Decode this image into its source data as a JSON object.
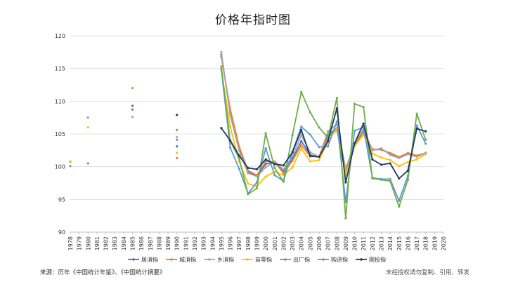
{
  "chart_data": {
    "type": "line",
    "title": "价格年指时图",
    "xlabel": "",
    "ylabel": "",
    "ylim": [
      90,
      120
    ],
    "yticks": [
      90,
      95,
      100,
      105,
      110,
      115,
      120
    ],
    "xlim": [
      1978,
      2020
    ],
    "grid": true,
    "legend_position": "bottom",
    "series": [
      {
        "name": "居消指",
        "color": "#4472C4",
        "x": [
          1978,
          1980,
          1985,
          1990,
          1995,
          1996,
          1997,
          1998,
          1999,
          2000,
          2001,
          2002,
          2003,
          2004,
          2005,
          2006,
          2007,
          2008,
          2009,
          2010,
          2011,
          2012,
          2013,
          2014,
          2015,
          2016,
          2017,
          2018
        ],
        "y": [
          100.7,
          107.5,
          109.3,
          103.1,
          117.1,
          108.3,
          102.8,
          99.2,
          98.6,
          100.4,
          100.7,
          99.2,
          101.2,
          103.9,
          101.8,
          101.5,
          104.8,
          105.9,
          99.3,
          103.3,
          105.4,
          102.6,
          102.6,
          102.0,
          101.4,
          102.0,
          101.6,
          102.1
        ]
      },
      {
        "name": "城消指",
        "color": "#ED7D31",
        "x": [
          1978,
          1980,
          1985,
          1990,
          1995,
          1996,
          1997,
          1998,
          1999,
          2000,
          2001,
          2002,
          2003,
          2004,
          2005,
          2006,
          2007,
          2008,
          2009,
          2010,
          2011,
          2012,
          2013,
          2014,
          2015,
          2016,
          2017,
          2018
        ],
        "y": [
          100.7,
          107.5,
          112.0,
          101.3,
          116.8,
          108.8,
          103.1,
          99.4,
          98.7,
          100.8,
          100.7,
          99.0,
          100.9,
          103.3,
          101.6,
          101.5,
          104.5,
          105.6,
          99.1,
          103.2,
          105.3,
          102.7,
          102.6,
          102.1,
          101.5,
          102.1,
          101.7,
          102.1
        ]
      },
      {
        "name": "乡消指",
        "color": "#A5A5A5",
        "x": [
          1978,
          1980,
          1985,
          1990,
          1995,
          1996,
          1997,
          1998,
          1999,
          2000,
          2001,
          2002,
          2003,
          2004,
          2005,
          2006,
          2007,
          2008,
          2009,
          2010,
          2011,
          2012,
          2013,
          2014,
          2015,
          2016,
          2017,
          2018
        ],
        "y": [
          100.8,
          107.5,
          107.6,
          104.5,
          117.5,
          107.9,
          102.5,
          99.0,
          98.5,
          99.9,
          100.8,
          99.6,
          101.6,
          104.8,
          102.2,
          101.5,
          105.4,
          106.5,
          99.7,
          103.6,
          105.8,
          102.5,
          102.8,
          101.8,
          101.3,
          101.9,
          101.5,
          102.1
        ]
      },
      {
        "name": "商零指",
        "color": "#FFC000",
        "x": [
          1978,
          1980,
          1985,
          1990,
          1995,
          1996,
          1997,
          1998,
          1999,
          2000,
          2001,
          2002,
          2003,
          2004,
          2005,
          2006,
          2007,
          2008,
          2009,
          2010,
          2011,
          2012,
          2013,
          2014,
          2015,
          2016,
          2017,
          2018
        ],
        "y": [
          100.7,
          106.0,
          108.8,
          102.1,
          114.8,
          106.1,
          100.8,
          97.4,
          97.0,
          98.5,
          99.2,
          98.7,
          99.9,
          102.8,
          100.8,
          101.0,
          103.8,
          105.9,
          98.8,
          103.1,
          104.9,
          102.0,
          101.4,
          101.0,
          100.1,
          100.7,
          101.1,
          101.9
        ]
      },
      {
        "name": "出厂指",
        "color": "#5B9BD5",
        "x": [
          1978,
          1980,
          1985,
          1990,
          1995,
          1996,
          1997,
          1998,
          1999,
          2000,
          2001,
          2002,
          2003,
          2004,
          2005,
          2006,
          2007,
          2008,
          2009,
          2010,
          2011,
          2012,
          2013,
          2014,
          2015,
          2016,
          2017,
          2018
        ],
        "y": [
          100.1,
          100.5,
          108.7,
          104.1,
          114.9,
          102.9,
          99.7,
          95.9,
          97.6,
          102.8,
          98.7,
          97.8,
          102.3,
          106.1,
          104.9,
          103.0,
          103.1,
          106.9,
          94.6,
          105.5,
          106.0,
          98.3,
          98.1,
          98.1,
          94.8,
          98.6,
          106.3,
          103.5
        ]
      },
      {
        "name": "购进指",
        "color": "#70AD47",
        "x": [
          1990,
          1995,
          1996,
          1997,
          1998,
          1999,
          2000,
          2001,
          2002,
          2003,
          2004,
          2005,
          2006,
          2007,
          2008,
          2009,
          2010,
          2011,
          2012,
          2013,
          2014,
          2015,
          2016,
          2017,
          2018
        ],
        "y": [
          105.6,
          115.3,
          103.9,
          101.3,
          95.8,
          96.7,
          105.1,
          99.8,
          97.7,
          104.8,
          111.4,
          108.3,
          106.0,
          104.4,
          110.5,
          92.1,
          109.6,
          109.1,
          98.2,
          98.0,
          97.8,
          93.9,
          98.0,
          108.1,
          104.1
        ]
      },
      {
        "name": "固投指",
        "color": "#203864",
        "x": [
          1990,
          1995,
          1996,
          1997,
          1998,
          1999,
          2000,
          2001,
          2002,
          2003,
          2004,
          2005,
          2006,
          2007,
          2008,
          2009,
          2010,
          2011,
          2012,
          2013,
          2014,
          2015,
          2016,
          2017,
          2018
        ],
        "y": [
          107.9,
          105.9,
          104.0,
          101.7,
          99.8,
          99.6,
          101.1,
          100.4,
          100.2,
          102.2,
          105.6,
          101.6,
          101.5,
          103.9,
          108.9,
          97.6,
          103.6,
          106.6,
          101.1,
          100.3,
          100.5,
          98.2,
          99.4,
          105.8,
          105.4
        ]
      }
    ]
  },
  "footer": {
    "source": "来源：历年《中国统计年鉴》、《中国统计摘要》",
    "rights": "未经授权请勿复制、引用、转发"
  }
}
